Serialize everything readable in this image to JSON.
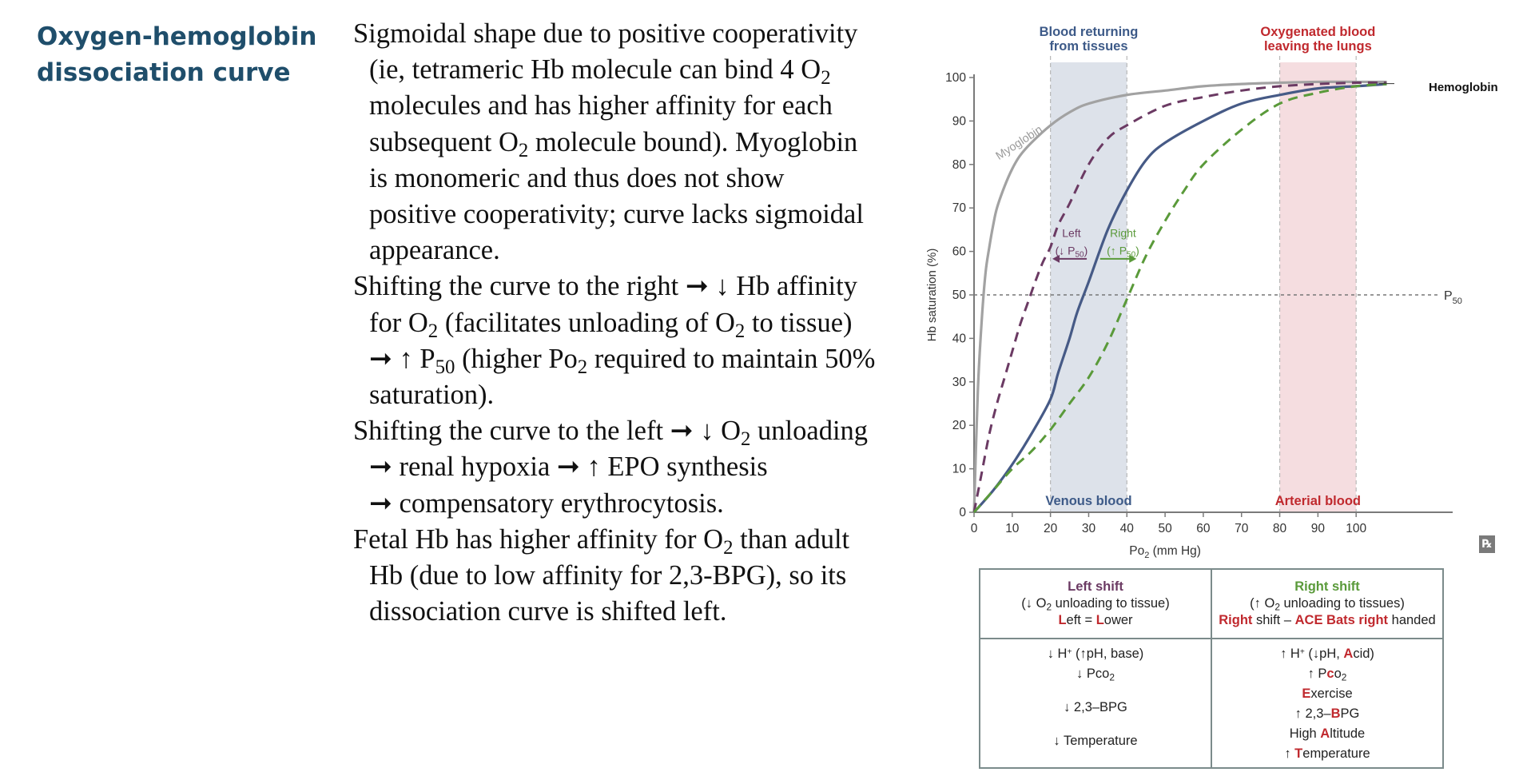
{
  "heading": {
    "line1": "Oxygen-hemoglobin",
    "line2": "dissociation curve"
  },
  "text": {
    "p1": [
      "Sigmoidal shape due to positive cooperativity",
      "(ie, tetrameric Hb molecule can bind 4 O",
      "2",
      "molecules and has higher affinity for each",
      "subsequent O",
      "2",
      " molecule bound). Myoglobin",
      "is monomeric and thus does not show",
      "positive cooperativity; curve lacks sigmoidal",
      "appearance."
    ],
    "p2": [
      "Shifting the curve to the right ",
      "➞",
      " ",
      "↓",
      " Hb affinity",
      "for O",
      "2",
      " (facilitates unloading of O",
      "2",
      " to tissue)",
      "➞",
      " ",
      "↑",
      " P",
      "50",
      " (higher Po",
      "2",
      " required to maintain 50%",
      "saturation)."
    ],
    "p3": [
      "Shifting the curve to the left ",
      "➞",
      " ",
      "↓",
      " O",
      "2",
      " unloading",
      "➞",
      " renal hypoxia ",
      "➞",
      " ",
      "↑",
      " EPO synthesis",
      "➞",
      " compensatory erythrocytosis."
    ],
    "p4": [
      "Fetal Hb has higher affinity for O",
      "2",
      " than adult",
      "Hb (due to low affinity for 2,3-BPG), so its",
      "dissociation curve is shifted left."
    ]
  },
  "chart_data": {
    "type": "line",
    "title": "",
    "xlabel_main": "Po",
    "xlabel_sub": "2",
    "xlabel_unit": " (mm Hg)",
    "ylabel": "Hb saturation (%)",
    "xlim": [
      0,
      110
    ],
    "ylim": [
      0,
      100
    ],
    "xticks": [
      0,
      10,
      20,
      30,
      40,
      50,
      60,
      70,
      80,
      90,
      100
    ],
    "yticks": [
      0,
      10,
      20,
      30,
      40,
      50,
      60,
      70,
      80,
      90,
      100
    ],
    "bands": [
      {
        "name": "Venous blood",
        "x": [
          20,
          40
        ],
        "color": "#dde2ea",
        "label_color": "#3d5a88",
        "top_label": [
          "Blood returning",
          "from tissues"
        ]
      },
      {
        "name": "Arterial blood",
        "x": [
          80,
          100
        ],
        "color": "#f5dde0",
        "label_color": "#c0292e",
        "top_label": [
          "Oxygenated blood",
          "leaving the lungs"
        ]
      }
    ],
    "p50_line": {
      "y": 50,
      "label_main": "P",
      "label_sub": "50"
    },
    "series": [
      {
        "name": "Myoglobin",
        "color": "#a2a2a2",
        "dash": false,
        "x": [
          0,
          1,
          2,
          3,
          4,
          5,
          6,
          8,
          10,
          12,
          15,
          20,
          25,
          30,
          40,
          50,
          60,
          70,
          80,
          90,
          100,
          108
        ],
        "y": [
          0,
          28,
          44,
          55,
          61,
          66,
          70,
          75,
          79,
          82,
          85,
          89,
          92,
          94,
          96,
          97,
          98,
          98.5,
          98.8,
          99,
          99,
          99
        ]
      },
      {
        "name": "Left",
        "color": "#6b3a63",
        "dash": true,
        "x": [
          0,
          2,
          4,
          6,
          8,
          10,
          12,
          14,
          16,
          18,
          20,
          22,
          25,
          30,
          35,
          40,
          50,
          60,
          70,
          80,
          90,
          100,
          108
        ],
        "y": [
          0,
          9,
          18,
          25,
          31,
          37,
          43,
          48,
          53,
          57.5,
          61,
          66,
          71,
          80,
          86,
          89,
          93.5,
          95.5,
          97,
          98,
          98.5,
          98.8,
          98.8
        ]
      },
      {
        "name": "Hemoglobin",
        "color": "#465a86",
        "dash": false,
        "x": [
          0,
          5,
          10,
          15,
          20,
          22,
          25,
          27,
          30,
          35,
          40,
          45,
          50,
          60,
          70,
          80,
          90,
          100,
          108
        ],
        "y": [
          0,
          5,
          11,
          18,
          26,
          32,
          40,
          46,
          53,
          65,
          74,
          81,
          85,
          90,
          94,
          96,
          97.5,
          98,
          98.5
        ]
      },
      {
        "name": "Right",
        "color": "#5a9a3a",
        "dash": true,
        "x": [
          0,
          5,
          10,
          15,
          20,
          25,
          30,
          35,
          40,
          45,
          50,
          55,
          60,
          70,
          80,
          90,
          100,
          108
        ],
        "y": [
          0,
          5,
          10,
          14,
          19,
          25,
          31,
          39,
          49,
          59,
          67,
          74,
          80,
          88,
          94,
          96.5,
          98,
          98.5
        ]
      }
    ],
    "curve_label_myoglobin": "Myoglobin",
    "curve_label_hemoglobin": "Hemoglobin",
    "left_label": {
      "line1": "Left",
      "arrow": "↓",
      "p": "P",
      "sub": "50",
      "paren_open": "(",
      "paren_close": ")"
    },
    "right_label": {
      "line1": "Right",
      "arrow": "↑",
      "p": "P",
      "sub": "50",
      "paren_open": "(",
      "paren_close": ")"
    }
  },
  "rx_icon": "℞",
  "table": {
    "left_head": {
      "title": "Left shift",
      "line2_pre": "(",
      "line2_arrow": "↓",
      "line2_o": " O",
      "line2_sub": "2",
      "line2_post": " unloading to tissue)",
      "line3_red": "L",
      "line3_a": "eft = ",
      "line3_red2": "L",
      "line3_b": "ower"
    },
    "right_head": {
      "title": "Right shift",
      "line2_pre": "(",
      "line2_arrow": "↑",
      "line2_o": " O",
      "line2_sub": "2",
      "line2_post": " unloading to tissues)",
      "line3_red": "Right",
      "line3_a": " shift – ",
      "line3_red2": "ACE Bats right",
      "line3_b": " handed"
    },
    "left_rows": {
      "h": [
        "↓ H",
        "+",
        " (",
        "↑",
        "pH, base)"
      ],
      "pco": [
        "↓ Pco",
        "2"
      ],
      "bpg": "↓ 2,3–BPG",
      "temp": "↓ Temperature"
    },
    "right_rows": {
      "h": [
        "↑ H",
        "+",
        " (",
        "↓",
        "pH, ",
        "A",
        "cid)"
      ],
      "pco": [
        "↑ P",
        "c",
        "o",
        "2"
      ],
      "exercise": [
        "E",
        "xercise"
      ],
      "bpg": [
        "↑ 2,3–",
        "B",
        "PG"
      ],
      "alt": [
        "High ",
        "A",
        "ltitude"
      ],
      "temp": [
        "↑ ",
        "T",
        "emperature"
      ]
    }
  }
}
